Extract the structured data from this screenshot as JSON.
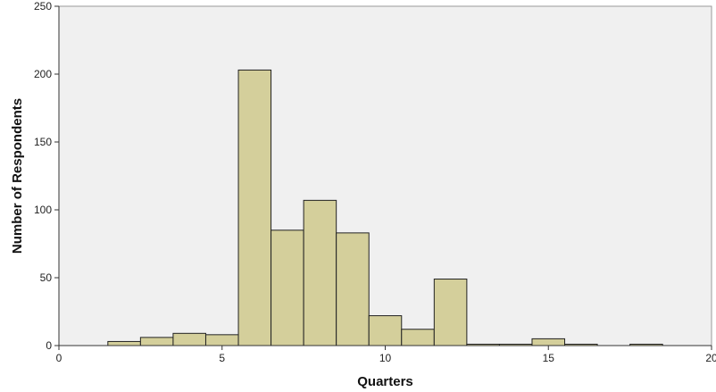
{
  "chart_data": {
    "type": "bar",
    "subtype": "histogram",
    "xlabel": "Quarters",
    "ylabel": "Number of Respondents",
    "xlim": [
      0,
      20
    ],
    "ylim": [
      0,
      250
    ],
    "xticks": [
      0,
      5,
      10,
      15,
      20
    ],
    "yticks": [
      0,
      50,
      100,
      150,
      200,
      250
    ],
    "bin_width": 1,
    "bins": [
      {
        "start": 1.5,
        "end": 2.5,
        "count": 3
      },
      {
        "start": 2.5,
        "end": 3.5,
        "count": 6
      },
      {
        "start": 3.5,
        "end": 4.5,
        "count": 9
      },
      {
        "start": 4.5,
        "end": 5.5,
        "count": 8
      },
      {
        "start": 5.5,
        "end": 6.5,
        "count": 203
      },
      {
        "start": 6.5,
        "end": 7.5,
        "count": 85
      },
      {
        "start": 7.5,
        "end": 8.5,
        "count": 107
      },
      {
        "start": 8.5,
        "end": 9.5,
        "count": 83
      },
      {
        "start": 9.5,
        "end": 10.5,
        "count": 22
      },
      {
        "start": 10.5,
        "end": 11.5,
        "count": 12
      },
      {
        "start": 11.5,
        "end": 12.5,
        "count": 49
      },
      {
        "start": 12.5,
        "end": 13.5,
        "count": 1
      },
      {
        "start": 13.5,
        "end": 14.5,
        "count": 1
      },
      {
        "start": 14.5,
        "end": 15.5,
        "count": 5
      },
      {
        "start": 15.5,
        "end": 16.5,
        "count": 1
      },
      {
        "start": 17.5,
        "end": 18.5,
        "count": 1
      }
    ],
    "grid": false,
    "colors": {
      "bar_fill": "#d4cf9b",
      "bar_stroke": "#222222",
      "plot_background": "#f0f0f0",
      "frame": "#9a9a9a"
    }
  }
}
